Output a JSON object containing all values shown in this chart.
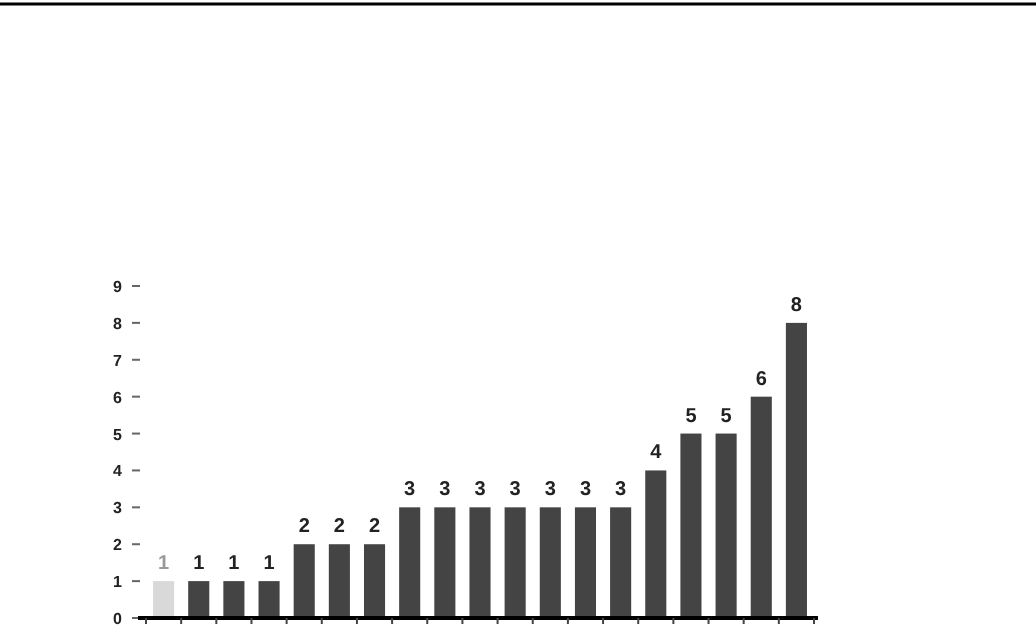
{
  "chart_data": {
    "type": "bar",
    "categories": [
      null,
      null,
      null,
      null,
      null,
      null,
      null,
      null,
      null,
      null,
      null,
      null,
      null,
      null,
      null,
      null,
      null,
      null,
      null
    ],
    "values": [
      1,
      1,
      1,
      1,
      2,
      2,
      2,
      3,
      3,
      3,
      3,
      3,
      3,
      3,
      4,
      5,
      5,
      6,
      8
    ],
    "colors": [
      "#d9d9d9",
      "#444444",
      "#444444",
      "#444444",
      "#444444",
      "#444444",
      "#444444",
      "#444444",
      "#444444",
      "#444444",
      "#444444",
      "#444444",
      "#444444",
      "#444444",
      "#444444",
      "#444444",
      "#444444",
      "#444444",
      "#444444"
    ],
    "ylim": [
      0,
      9
    ],
    "yticks": [
      0,
      1,
      2,
      3,
      4,
      5,
      6,
      7,
      8,
      9
    ],
    "data_labels": true,
    "grid": false
  }
}
